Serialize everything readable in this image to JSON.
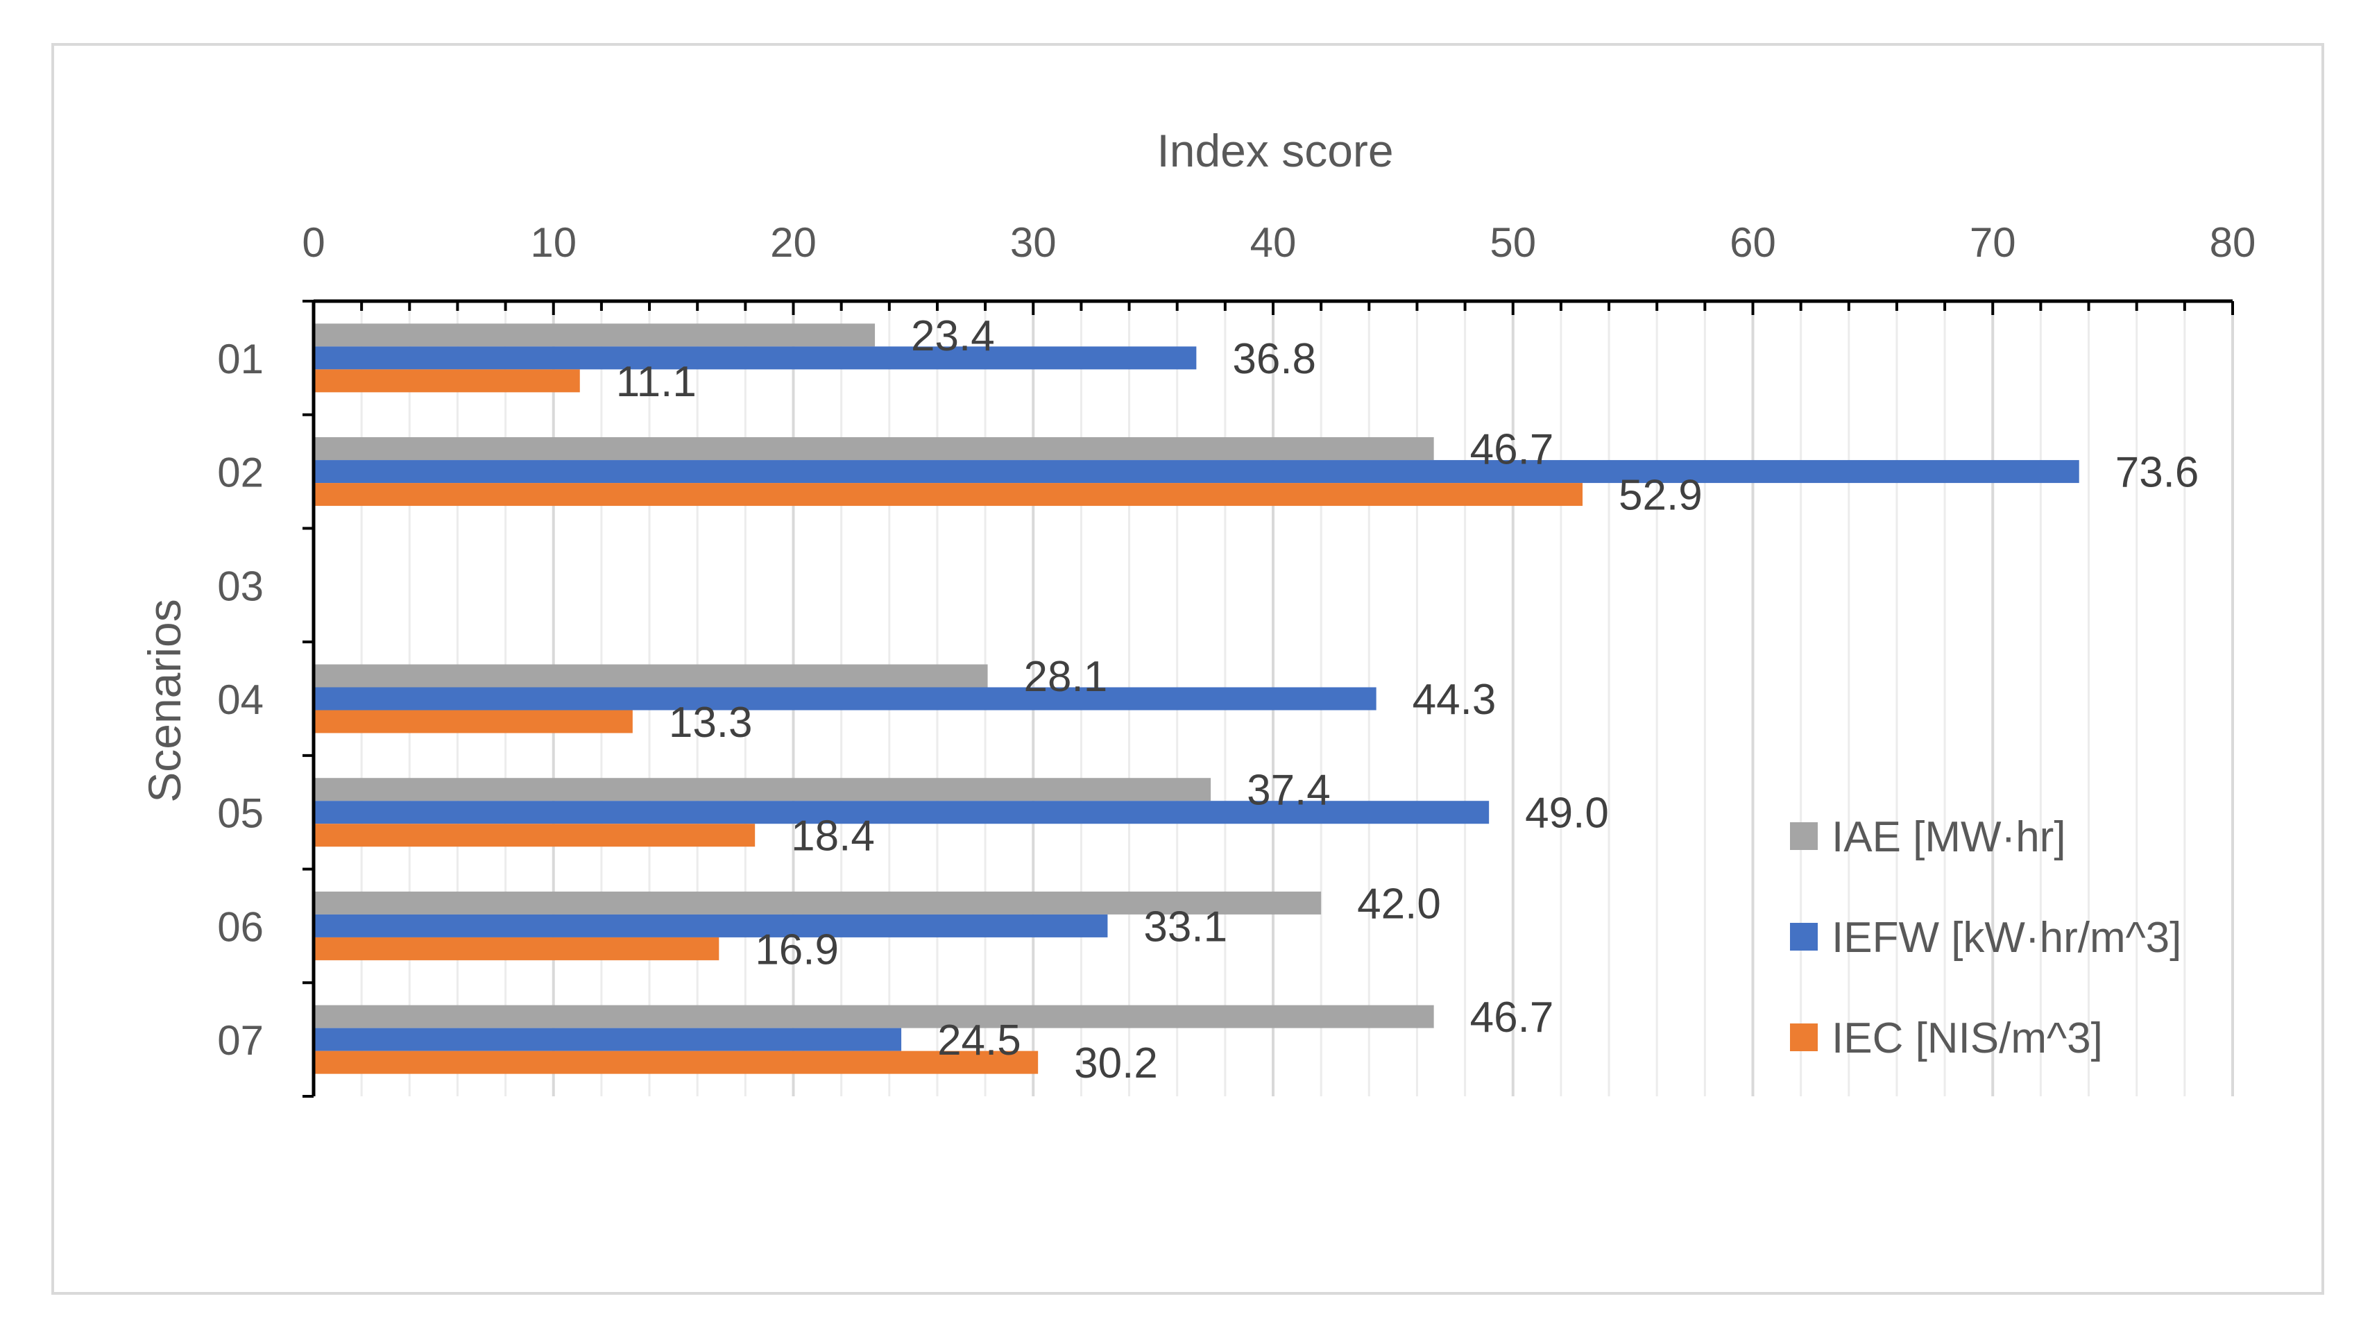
{
  "chart_data": {
    "type": "bar",
    "orientation": "horizontal",
    "title": "",
    "xlabel": "Index score",
    "ylabel": "Scenarios",
    "xlim": [
      0,
      80
    ],
    "x_ticks": [
      0,
      10,
      20,
      30,
      40,
      50,
      60,
      70,
      80
    ],
    "x_axis_position": "top",
    "grid": true,
    "legend_position": "bottom-right",
    "categories": [
      "01",
      "02",
      "03",
      "04",
      "05",
      "06",
      "07"
    ],
    "series": [
      {
        "name": "IAE [MW·hr]",
        "color": "#A5A5A5",
        "values": [
          23.4,
          46.7,
          null,
          28.1,
          37.4,
          42.0,
          46.7
        ],
        "labels": [
          "23.4",
          "46.7",
          "",
          "28.1",
          "37.4",
          "42.0",
          "46.7"
        ]
      },
      {
        "name": "IEFW [kW·hr/m^3]",
        "color": "#4472C4",
        "values": [
          36.8,
          73.6,
          null,
          44.3,
          49.0,
          33.1,
          24.5
        ],
        "labels": [
          "36.8",
          "73.6",
          "",
          "44.3",
          "49.0",
          "33.1",
          "24.5"
        ]
      },
      {
        "name": "IEC [NIS/m^3]",
        "color": "#ED7D31",
        "values": [
          11.1,
          52.9,
          null,
          13.3,
          18.4,
          16.9,
          30.2
        ],
        "labels": [
          "11.1",
          "52.9",
          "",
          "13.3",
          "18.4",
          "16.9",
          "30.2"
        ]
      }
    ]
  }
}
